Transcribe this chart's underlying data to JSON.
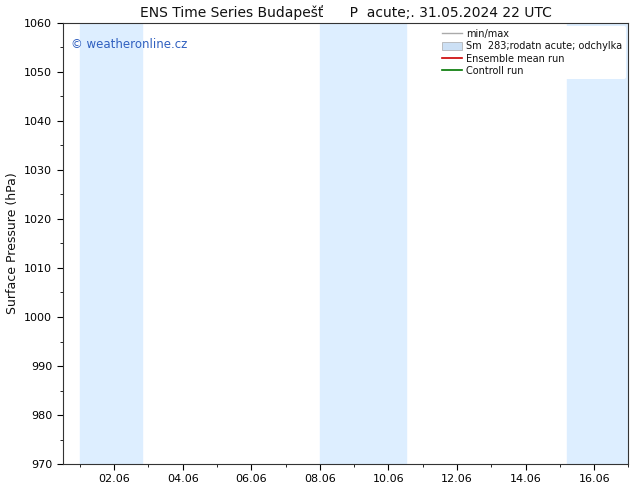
{
  "title": "ENS Time Series Budapešť      P  acute;. 31.05.2024 22 UTC",
  "ylabel": "Surface Pressure (hPa)",
  "ylim": [
    970,
    1060
  ],
  "yticks": [
    970,
    980,
    990,
    1000,
    1010,
    1020,
    1030,
    1040,
    1050,
    1060
  ],
  "xtick_labels": [
    "02.06",
    "04.06",
    "06.06",
    "08.06",
    "10.06",
    "12.06",
    "14.06",
    "16.06"
  ],
  "xtick_positions": [
    2,
    4,
    6,
    8,
    10,
    12,
    14,
    16
  ],
  "xlim": [
    0.5,
    17
  ],
  "watermark": "© weatheronline.cz",
  "watermark_color": "#3060c0",
  "bg_color": "#ffffff",
  "shaded_bands": [
    {
      "x_start": 1.0,
      "x_end": 2.8,
      "color": "#ddeeff"
    },
    {
      "x_start": 8.0,
      "x_end": 10.5,
      "color": "#ddeeff"
    },
    {
      "x_start": 15.2,
      "x_end": 17.0,
      "color": "#ddeeff"
    }
  ],
  "legend_labels": [
    "min/max",
    "Sm  283;rodatn acute; odchylka",
    "Ensemble mean run",
    "Controll run"
  ],
  "title_fontsize": 10,
  "tick_fontsize": 8,
  "ylabel_fontsize": 9
}
